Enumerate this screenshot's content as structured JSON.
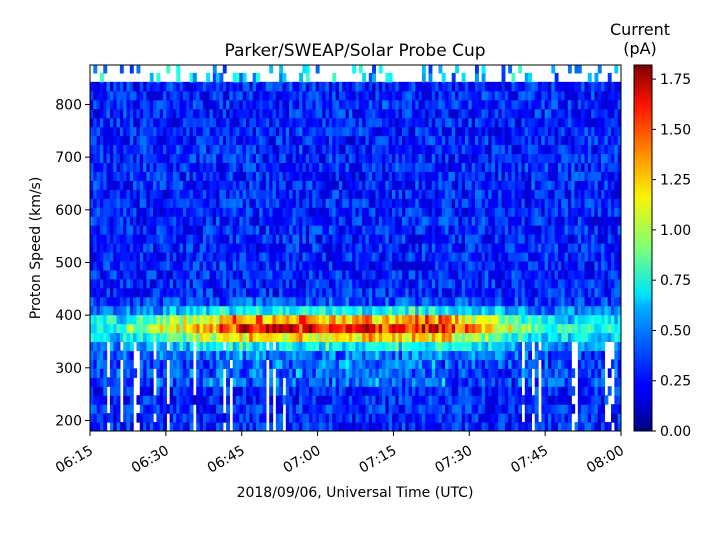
{
  "chart_data": {
    "type": "heatmap",
    "title": "Parker/SWEAP/Solar Probe Cup",
    "xlabel": "2018/09/06, Universal Time (UTC)",
    "ylabel": "Proton Speed (km/s)",
    "x_ticks": [
      "06:15",
      "06:30",
      "06:45",
      "07:00",
      "07:15",
      "07:30",
      "07:45",
      "08:00"
    ],
    "x_range": [
      "06:15",
      "08:00"
    ],
    "y_ticks": [
      200,
      300,
      400,
      500,
      600,
      700,
      800
    ],
    "y_range": [
      180,
      875
    ],
    "colorbar": {
      "label_line1": "Current",
      "label_line2": "(pA)",
      "ticks": [
        "0.00",
        "0.25",
        "0.50",
        "0.75",
        "1.00",
        "1.25",
        "1.50",
        "1.75"
      ],
      "range": [
        0,
        1.82
      ],
      "colormap": "jet"
    },
    "description_of_structure": {
      "background_level_pA": 0.3,
      "peak_band_speed_kms": [
        355,
        400
      ],
      "peak_current_pA": 1.7,
      "peak_time_range": [
        "06:45",
        "07:25"
      ],
      "top_edge_missing_speed_kms": 840
    }
  }
}
